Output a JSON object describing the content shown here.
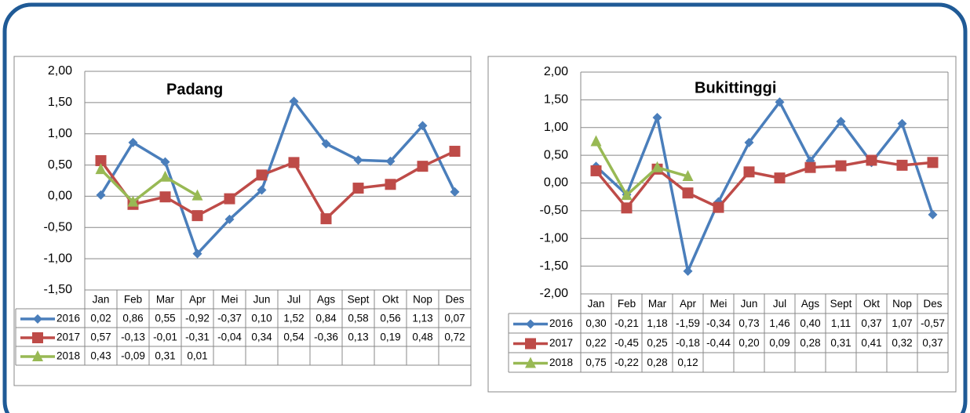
{
  "chart_data": [
    {
      "type": "line",
      "title": "Padang",
      "categories": [
        "Jan",
        "Feb",
        "Mar",
        "Apr",
        "Mei",
        "Jun",
        "Jul",
        "Ags",
        "Sept",
        "Okt",
        "Nop",
        "Des"
      ],
      "series": [
        {
          "name": "2016",
          "color": "#4a7ebb",
          "marker": "diamond",
          "values": [
            0.02,
            0.86,
            0.55,
            -0.92,
            -0.37,
            0.1,
            1.52,
            0.84,
            0.58,
            0.56,
            1.13,
            0.07
          ],
          "value_labels": [
            "0,02",
            "0,86",
            "0,55",
            "-0,92",
            "-0,37",
            "0,10",
            "1,52",
            "0,84",
            "0,58",
            "0,56",
            "1,13",
            "0,07"
          ]
        },
        {
          "name": "2017",
          "color": "#be4b48",
          "marker": "square",
          "values": [
            0.57,
            -0.13,
            -0.01,
            -0.31,
            -0.04,
            0.34,
            0.54,
            -0.36,
            0.13,
            0.19,
            0.48,
            0.72
          ],
          "value_labels": [
            "0,57",
            "-0,13",
            "-0,01",
            "-0,31",
            "-0,04",
            "0,34",
            "0,54",
            "-0,36",
            "0,13",
            "0,19",
            "0,48",
            "0,72"
          ]
        },
        {
          "name": "2018",
          "color": "#98b954",
          "marker": "triangle",
          "values": [
            0.43,
            -0.09,
            0.31,
            0.01,
            null,
            null,
            null,
            null,
            null,
            null,
            null,
            null
          ],
          "value_labels": [
            "0,43",
            "-0,09",
            "0,31",
            "0,01",
            null,
            null,
            null,
            null,
            null,
            null,
            null,
            null
          ]
        }
      ],
      "ylim": [
        -1.5,
        2
      ],
      "yticks": [
        {
          "value": -1.5,
          "label": "-1,50"
        },
        {
          "value": -1,
          "label": "-1,00"
        },
        {
          "value": -0.5,
          "label": "-0,50"
        },
        {
          "value": 0,
          "label": "0,00"
        },
        {
          "value": 0.5,
          "label": "0,50"
        },
        {
          "value": 1,
          "label": "1,00"
        },
        {
          "value": 1.5,
          "label": "1,50"
        },
        {
          "value": 2,
          "label": "2,00"
        }
      ],
      "grid": true
    },
    {
      "type": "line",
      "title": "Bukittinggi",
      "categories": [
        "Jan",
        "Feb",
        "Mar",
        "Apr",
        "Mei",
        "Jun",
        "Jul",
        "Ags",
        "Sept",
        "Okt",
        "Nop",
        "Des"
      ],
      "series": [
        {
          "name": "2016",
          "color": "#4a7ebb",
          "marker": "diamond",
          "values": [
            0.3,
            -0.21,
            1.18,
            -1.59,
            -0.34,
            0.73,
            1.46,
            0.4,
            1.11,
            0.37,
            1.07,
            -0.57
          ],
          "value_labels": [
            "0,30",
            "-0,21",
            "1,18",
            "-1,59",
            "-0,34",
            "0,73",
            "1,46",
            "0,40",
            "1,11",
            "0,37",
            "1,07",
            "-0,57"
          ]
        },
        {
          "name": "2017",
          "color": "#be4b48",
          "marker": "square",
          "values": [
            0.22,
            -0.45,
            0.25,
            -0.18,
            -0.44,
            0.2,
            0.09,
            0.28,
            0.31,
            0.41,
            0.32,
            0.37
          ],
          "value_labels": [
            "0,22",
            "-0,45",
            "0,25",
            "-0,18",
            "-0,44",
            "0,20",
            "0,09",
            "0,28",
            "0,31",
            "0,41",
            "0,32",
            "0,37"
          ]
        },
        {
          "name": "2018",
          "color": "#98b954",
          "marker": "triangle",
          "values": [
            0.75,
            -0.22,
            0.28,
            0.12,
            null,
            null,
            null,
            null,
            null,
            null,
            null,
            null
          ],
          "value_labels": [
            "0,75",
            "-0,22",
            "0,28",
            "0,12",
            null,
            null,
            null,
            null,
            null,
            null,
            null,
            null
          ]
        }
      ],
      "ylim": [
        -2,
        2
      ],
      "yticks": [
        {
          "value": -2,
          "label": "-2,00"
        },
        {
          "value": -1.5,
          "label": "-1,50"
        },
        {
          "value": -1,
          "label": "-1,00"
        },
        {
          "value": -0.5,
          "label": "-0,50"
        },
        {
          "value": 0,
          "label": "0,00"
        },
        {
          "value": 0.5,
          "label": "0,50"
        },
        {
          "value": 1,
          "label": "1,00"
        },
        {
          "value": 1.5,
          "label": "1,50"
        },
        {
          "value": 2,
          "label": "2,00"
        }
      ],
      "grid": true
    }
  ]
}
